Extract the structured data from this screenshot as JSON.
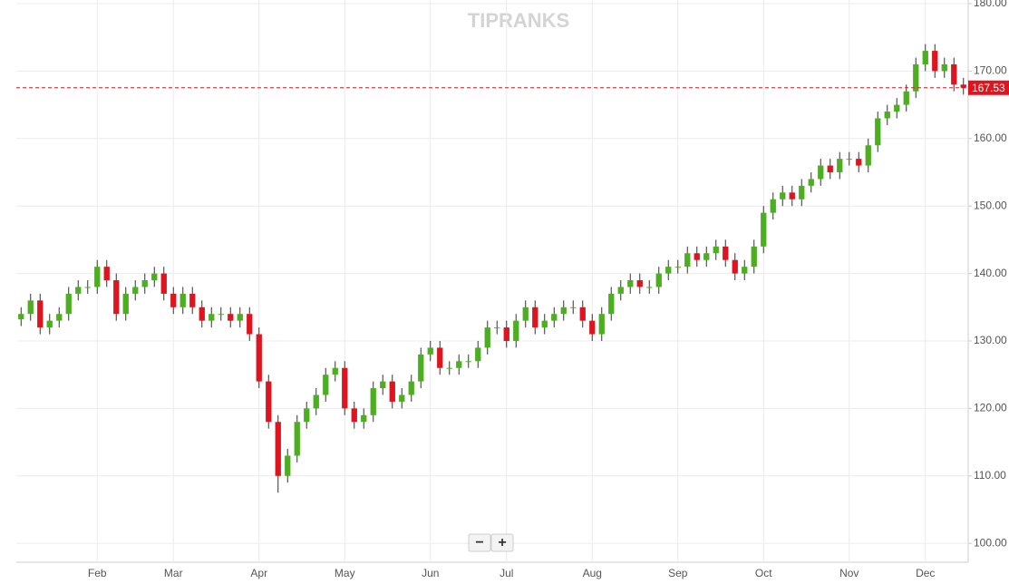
{
  "chart_data": {
    "type": "candlestick",
    "watermark": "TIPRANKS",
    "zoom_buttons": [
      "−",
      "+"
    ],
    "categories": [
      null,
      null,
      null,
      null,
      null,
      null,
      null,
      null,
      "Feb",
      null,
      null,
      null,
      null,
      null,
      null,
      null,
      "Mar",
      null,
      null,
      null,
      null,
      null,
      null,
      null,
      null,
      "Apr",
      null,
      null,
      null,
      null,
      null,
      null,
      null,
      null,
      "May",
      null,
      null,
      null,
      null,
      null,
      null,
      null,
      null,
      "Jun",
      null,
      null,
      null,
      null,
      null,
      null,
      null,
      "Jul",
      null,
      null,
      null,
      null,
      null,
      null,
      null,
      null,
      "Aug",
      null,
      null,
      null,
      null,
      null,
      null,
      null,
      null,
      "Sep",
      null,
      null,
      null,
      null,
      null,
      null,
      null,
      null,
      "Oct",
      null,
      null,
      null,
      null,
      null,
      null,
      null,
      null,
      "Nov",
      null,
      null,
      null,
      null,
      null,
      null,
      null,
      "Dec",
      null,
      null,
      null,
      null
    ],
    "open": [
      133.2,
      134,
      136,
      132,
      133,
      134,
      137,
      138,
      138,
      141,
      139,
      134,
      137,
      138,
      139,
      140,
      137,
      135,
      137,
      135,
      133,
      134,
      134,
      133,
      134,
      131,
      124,
      118,
      110,
      113,
      118,
      120,
      122,
      125,
      126,
      120,
      118,
      119,
      123,
      124,
      121,
      122,
      124,
      128,
      129,
      126,
      126,
      127,
      127,
      129,
      132,
      132,
      130,
      133,
      135,
      132,
      133,
      134,
      135,
      135,
      133,
      131,
      134,
      137,
      138,
      139,
      138,
      138,
      140,
      141,
      141,
      143,
      142,
      143,
      144,
      142,
      140,
      141,
      144,
      149,
      151,
      152,
      151,
      153,
      154,
      156,
      155,
      157,
      157,
      156,
      159,
      163,
      164,
      165,
      167,
      171,
      173,
      170,
      171,
      168
    ],
    "high": [
      135,
      137,
      137,
      134,
      135,
      138,
      139,
      139,
      142,
      142,
      140,
      138,
      139,
      140,
      141,
      141,
      138,
      138,
      138,
      136,
      135,
      135,
      135,
      135,
      135,
      132,
      125,
      119,
      114,
      119,
      121,
      123,
      126,
      127,
      127,
      121,
      120,
      124,
      125,
      125,
      123,
      125,
      129,
      130,
      130,
      127,
      128,
      128,
      130,
      133,
      133,
      133,
      134,
      136,
      136,
      134,
      135,
      136,
      136,
      136,
      134,
      135,
      138,
      139,
      140,
      140,
      139,
      141,
      142,
      142,
      144,
      144,
      144,
      145,
      145,
      143,
      142,
      145,
      150,
      152,
      153,
      153,
      154,
      155,
      157,
      157,
      158,
      158,
      158,
      160,
      164,
      165,
      166,
      168,
      172,
      174,
      174,
      172,
      172,
      169
    ],
    "low": [
      132.2,
      133,
      131,
      131,
      132,
      133,
      136,
      137,
      137,
      138,
      133,
      133,
      136,
      137,
      138,
      136,
      134,
      134,
      134,
      132,
      132,
      133,
      132,
      132,
      130,
      123,
      117,
      107.5,
      109,
      112,
      117,
      119,
      121,
      124,
      119,
      117,
      117,
      118,
      122,
      120,
      120,
      121,
      123,
      127,
      125,
      125,
      125,
      126,
      126,
      128,
      131,
      129,
      129,
      132,
      131,
      131,
      132,
      133,
      134,
      132,
      130,
      130,
      133,
      136,
      137,
      137,
      137,
      137,
      139,
      140,
      140,
      141,
      141,
      142,
      141,
      139,
      139,
      140,
      143,
      148,
      150,
      150,
      150,
      152,
      153,
      154,
      154,
      156,
      155,
      155,
      158,
      162,
      163,
      164,
      166,
      170,
      169,
      169,
      167,
      166.5
    ],
    "close": [
      134,
      136,
      132,
      133,
      134,
      137,
      138,
      138,
      141,
      139,
      134,
      137,
      138,
      139,
      140,
      137,
      135,
      137,
      135,
      133,
      134,
      134,
      133,
      134,
      131,
      124,
      118,
      110,
      113,
      118,
      120,
      122,
      125,
      126,
      120,
      118,
      119,
      123,
      124,
      121,
      122,
      124,
      128,
      129,
      126,
      126,
      127,
      127,
      129,
      132,
      132,
      130,
      133,
      135,
      132,
      133,
      134,
      135,
      135,
      133,
      131,
      134,
      137,
      138,
      139,
      138,
      138,
      140,
      141,
      141,
      143,
      142,
      143,
      144,
      142,
      140,
      141,
      144,
      149,
      151,
      152,
      151,
      153,
      154,
      156,
      155,
      157,
      157,
      156,
      159,
      163,
      164,
      165,
      167,
      171,
      173,
      170,
      171,
      168,
      167.53
    ],
    "up_color": "#4caf1f",
    "down_color": "#e0141e",
    "last_price": 167.53,
    "last_price_color": "#e0141e",
    "ylim": [
      97.2,
      180
    ],
    "yticks": [
      {
        "value": 100,
        "label": "100.00"
      },
      {
        "value": 110,
        "label": "110.00"
      },
      {
        "value": 120,
        "label": "120.00"
      },
      {
        "value": 130,
        "label": "130.00"
      },
      {
        "value": 140,
        "label": "140.00"
      },
      {
        "value": 150,
        "label": "150.00"
      },
      {
        "value": 160,
        "label": "160.00"
      },
      {
        "value": 170,
        "label": "170.00"
      },
      {
        "value": 180,
        "label": "180.00"
      }
    ],
    "grid": true
  }
}
